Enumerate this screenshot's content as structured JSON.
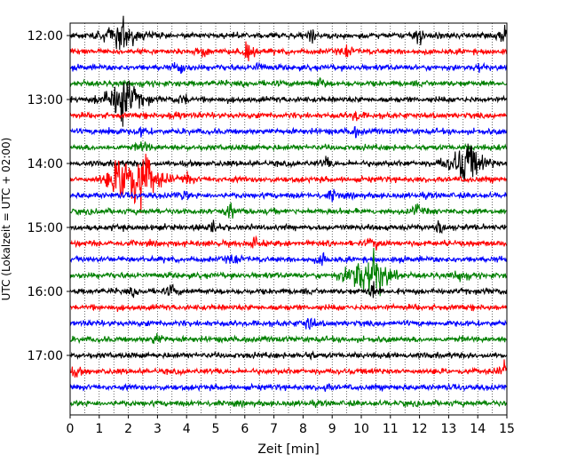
{
  "chart_data": {
    "type": "line",
    "title": "",
    "xlabel": "Zeit  [min]",
    "ylabel": "UTC (Lokalzeit = UTC + 02:00)",
    "xlim": [
      0,
      15
    ],
    "x_ticks": [
      "0",
      "1",
      "2",
      "3",
      "4",
      "5",
      "6",
      "7",
      "8",
      "9",
      "10",
      "11",
      "12",
      "13",
      "14",
      "15"
    ],
    "y_ticks": [
      "12:00",
      "13:00",
      "14:00",
      "15:00",
      "16:00",
      "17:00"
    ],
    "grid": "vertical dotted lines every 0.5 min",
    "trace_interval_minutes": 15,
    "trace_colors": [
      "#000000",
      "#ff0000",
      "#0000ff",
      "#008000"
    ],
    "traces": [
      {
        "start": "12:00",
        "color": "#000000",
        "events": [
          {
            "x": 1.8,
            "amp": 2.2
          },
          {
            "x": 8.3,
            "amp": 0.8
          },
          {
            "x": 12.0,
            "amp": 1.2
          },
          {
            "x": 14.9,
            "amp": 1.2
          }
        ]
      },
      {
        "start": "12:15",
        "color": "#ff0000",
        "events": [
          {
            "x": 4.6,
            "amp": 0.9
          },
          {
            "x": 6.1,
            "amp": 1.1
          },
          {
            "x": 9.5,
            "amp": 0.7
          }
        ]
      },
      {
        "start": "12:30",
        "color": "#0000ff",
        "events": [
          {
            "x": 3.8,
            "amp": 1.0
          },
          {
            "x": 6.5,
            "amp": 0.6
          },
          {
            "x": 14.0,
            "amp": 0.9
          }
        ]
      },
      {
        "start": "12:45",
        "color": "#008000",
        "events": [
          {
            "x": 8.6,
            "amp": 0.6
          }
        ]
      },
      {
        "start": "13:00",
        "color": "#000000",
        "events": [
          {
            "x": 1.8,
            "amp": 3.5
          },
          {
            "x": 3.9,
            "amp": 0.9
          }
        ]
      },
      {
        "start": "13:15",
        "color": "#ff0000",
        "events": [
          {
            "x": 3.6,
            "amp": 0.7
          },
          {
            "x": 9.8,
            "amp": 0.8
          }
        ]
      },
      {
        "start": "13:30",
        "color": "#0000ff",
        "events": [
          {
            "x": 1.4,
            "amp": 0.8
          },
          {
            "x": 2.5,
            "amp": 0.6
          },
          {
            "x": 9.8,
            "amp": 0.5
          }
        ]
      },
      {
        "start": "13:45",
        "color": "#008000",
        "events": [
          {
            "x": 2.5,
            "amp": 0.9
          }
        ]
      },
      {
        "start": "14:00",
        "color": "#000000",
        "events": [
          {
            "x": 8.8,
            "amp": 0.6
          },
          {
            "x": 13.6,
            "amp": 3.2
          }
        ]
      },
      {
        "start": "14:15",
        "color": "#ff0000",
        "events": [
          {
            "x": 1.9,
            "amp": 4.0
          },
          {
            "x": 2.5,
            "amp": 3.5
          },
          {
            "x": 4.0,
            "amp": 0.8
          }
        ]
      },
      {
        "start": "14:30",
        "color": "#0000ff",
        "events": [
          {
            "x": 3.9,
            "amp": 0.6
          },
          {
            "x": 9.0,
            "amp": 0.7
          }
        ]
      },
      {
        "start": "14:45",
        "color": "#008000",
        "events": [
          {
            "x": 5.5,
            "amp": 0.9
          },
          {
            "x": 11.9,
            "amp": 0.8
          }
        ]
      },
      {
        "start": "15:00",
        "color": "#000000",
        "events": [
          {
            "x": 4.9,
            "amp": 0.7
          },
          {
            "x": 12.7,
            "amp": 1.0
          }
        ]
      },
      {
        "start": "15:15",
        "color": "#ff0000",
        "events": [
          {
            "x": 6.3,
            "amp": 0.6
          },
          {
            "x": 10.4,
            "amp": 0.9
          }
        ]
      },
      {
        "start": "15:30",
        "color": "#0000ff",
        "events": [
          {
            "x": 5.6,
            "amp": 0.6
          },
          {
            "x": 8.7,
            "amp": 0.9
          }
        ]
      },
      {
        "start": "15:45",
        "color": "#008000",
        "events": [
          {
            "x": 10.0,
            "amp": 2.2
          },
          {
            "x": 10.4,
            "amp": 2.8
          },
          {
            "x": 13.4,
            "amp": 1.1
          }
        ]
      },
      {
        "start": "16:00",
        "color": "#000000",
        "events": [
          {
            "x": 2.2,
            "amp": 0.5
          },
          {
            "x": 3.5,
            "amp": 0.7
          },
          {
            "x": 10.4,
            "amp": 1.2
          }
        ]
      },
      {
        "start": "16:15",
        "color": "#ff0000",
        "events": []
      },
      {
        "start": "16:30",
        "color": "#0000ff",
        "events": [
          {
            "x": 8.2,
            "amp": 1.1
          }
        ]
      },
      {
        "start": "16:45",
        "color": "#008000",
        "events": [
          {
            "x": 3.0,
            "amp": 0.8
          }
        ]
      },
      {
        "start": "17:00",
        "color": "#000000",
        "events": [
          {
            "x": 8.2,
            "amp": 0.5
          }
        ]
      },
      {
        "start": "17:15",
        "color": "#ff0000",
        "events": [
          {
            "x": 0.2,
            "amp": 0.6
          },
          {
            "x": 14.9,
            "amp": 0.7
          }
        ]
      },
      {
        "start": "17:30",
        "color": "#0000ff",
        "events": [
          {
            "x": 8.8,
            "amp": 0.4
          }
        ]
      },
      {
        "start": "17:45",
        "color": "#008000",
        "events": []
      }
    ]
  }
}
